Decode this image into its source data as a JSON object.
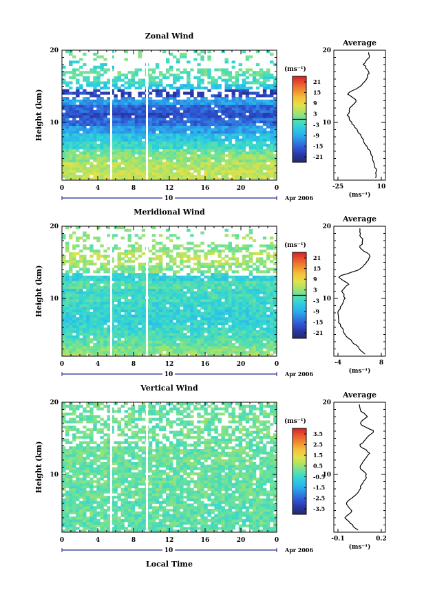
{
  "colorscale": [
    "#262c6b",
    "#2735a6",
    "#2f55d3",
    "#2f86e3",
    "#2ab4ee",
    "#2fd3d8",
    "#5ee0a6",
    "#a6e36a",
    "#e2e24a",
    "#f5c23c",
    "#f1902f",
    "#e85a2a",
    "#d8222a"
  ],
  "date_label": "Apr 2006",
  "day_label": "10",
  "local_time_label": "Local Time",
  "unit_label": "(ms⁻¹)",
  "panels": [
    {
      "title": "Zonal Wind",
      "ylabel": "Height (km)",
      "yticks": [
        "20",
        "10"
      ],
      "xticks": [
        "0",
        "4",
        "8",
        "12",
        "16",
        "20",
        "0"
      ],
      "cbar_ticks": [
        "21",
        "15",
        "9",
        "3",
        "-3",
        "-9",
        "-15",
        "-21"
      ],
      "avg_title": "Average",
      "avg_xticks": [
        "-25",
        "10"
      ],
      "avg_xlabel": "(ms⁻¹)"
    },
    {
      "title": "Meridional Wind",
      "ylabel": "Height (km)",
      "yticks": [
        "20",
        "10"
      ],
      "xticks": [
        "0",
        "4",
        "8",
        "12",
        "16",
        "20",
        "0"
      ],
      "cbar_ticks": [
        "21",
        "15",
        "9",
        "3",
        "-3",
        "-9",
        "-15",
        "-21"
      ],
      "avg_title": "Average",
      "avg_xticks": [
        "-4",
        "8"
      ],
      "avg_xlabel": "(ms⁻¹)"
    },
    {
      "title": "Vertical Wind",
      "ylabel": "Height (km)",
      "yticks": [
        "20",
        "10"
      ],
      "xticks": [
        "0",
        "4",
        "8",
        "12",
        "16",
        "20",
        "0"
      ],
      "cbar_ticks": [
        "3.5",
        "2.5",
        "1.5",
        "0.5",
        "-0.5",
        "-1.5",
        "-2.5",
        "-3.5"
      ],
      "avg_title": "Average",
      "avg_xticks": [
        "-0.1",
        "0.2"
      ],
      "avg_xlabel": "(ms⁻¹)"
    }
  ],
  "chart_data": [
    {
      "type": "heatmap",
      "title": "Zonal Wind",
      "xlabel": "Local Time",
      "ylabel": "Height (km)",
      "x_range": [
        0,
        24
      ],
      "y_range": [
        2,
        20
      ],
      "color_range": [
        -24,
        24
      ],
      "units": "ms-1",
      "gaps_hours": [
        5.5,
        9.5
      ],
      "profile_heights": [
        2,
        3,
        4,
        5,
        6,
        7,
        8,
        9,
        10,
        11,
        12,
        13,
        14,
        15,
        16,
        17,
        18,
        19
      ],
      "profile_by_height": [
        6,
        6,
        5,
        3,
        1,
        -3,
        -6,
        -10,
        -14,
        -17,
        -15,
        -10,
        -18,
        -6,
        -2,
        0,
        -4,
        0
      ],
      "average_profile": {
        "title": "Average",
        "xlim": [
          -25,
          10
        ],
        "ylim": [
          2,
          20
        ]
      }
    },
    {
      "type": "heatmap",
      "title": "Meridional Wind",
      "xlabel": "Local Time",
      "ylabel": "Height (km)",
      "x_range": [
        0,
        24
      ],
      "y_range": [
        2,
        20
      ],
      "color_range": [
        -24,
        24
      ],
      "units": "ms-1",
      "gaps_hours": [
        5.5,
        9.5
      ],
      "profile_heights": [
        2,
        3,
        4,
        5,
        6,
        7,
        8,
        9,
        10,
        11,
        12,
        13,
        14,
        15,
        16,
        17,
        18,
        19
      ],
      "profile_by_height": [
        4,
        2,
        0,
        -2,
        -3,
        -4,
        -4,
        -3,
        -2,
        -3,
        -1,
        -4,
        2,
        4,
        5,
        2,
        3,
        2
      ],
      "average_profile": {
        "title": "Average",
        "xlim": [
          -4,
          8
        ],
        "ylim": [
          2,
          20
        ]
      }
    },
    {
      "type": "heatmap",
      "title": "Vertical Wind",
      "xlabel": "Local Time",
      "ylabel": "Height (km)",
      "x_range": [
        0,
        24
      ],
      "y_range": [
        2,
        20
      ],
      "color_range": [
        -4,
        4
      ],
      "units": "ms-1",
      "gaps_hours": [
        5.5,
        9.5
      ],
      "profile_heights": [
        2,
        3,
        4,
        5,
        6,
        7,
        8,
        9,
        10,
        11,
        12,
        13,
        14,
        15,
        16,
        17,
        18,
        19
      ],
      "profile_by_height": [
        0.05,
        0.0,
        -0.05,
        0.0,
        -0.05,
        0.02,
        0.05,
        0.08,
        0.1,
        0.05,
        0.08,
        0.12,
        0.05,
        0.1,
        0.15,
        0.05,
        0.1,
        0.05
      ],
      "average_profile": {
        "title": "Average",
        "xlim": [
          -0.1,
          0.2
        ],
        "ylim": [
          2,
          20
        ]
      }
    }
  ]
}
